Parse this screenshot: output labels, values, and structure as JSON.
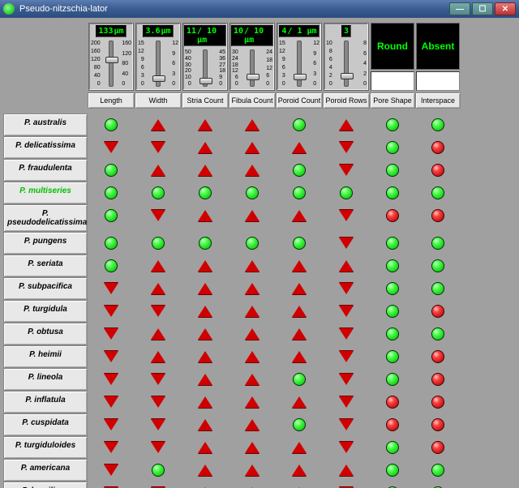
{
  "window": {
    "title": "Pseudo-nitzschia-lator"
  },
  "controls": [
    {
      "name": "Length",
      "value": "133",
      "unit": "µm",
      "min": 0,
      "max": 200,
      "ticks_l": [
        "200",
        "160",
        "120",
        "80",
        "40",
        "0"
      ],
      "ticks_r": [
        "160",
        "120",
        "80",
        "40",
        "0"
      ],
      "thumb_pct": 34
    },
    {
      "name": "Width",
      "value": "3.6",
      "unit": "µm",
      "min": 0,
      "max": 15,
      "ticks_l": [
        "15",
        "12",
        "9",
        "6",
        "3",
        "0"
      ],
      "ticks_r": [
        "12",
        "9",
        "6",
        "3",
        "0"
      ],
      "thumb_pct": 76
    },
    {
      "name": "Stria Count",
      "value": "11",
      "unit": "/ 10 µm",
      "min": 0,
      "max": 50,
      "ticks_l": [
        "50",
        "40",
        "30",
        "20",
        "10",
        "0"
      ],
      "ticks_r": [
        "45",
        "36",
        "27",
        "18",
        "9",
        "0"
      ],
      "thumb_pct": 78
    },
    {
      "name": "Fibula Count",
      "value": "10",
      "unit": "/ 10 µm",
      "min": 0,
      "max": 30,
      "ticks_l": [
        "30",
        "24",
        "18",
        "12",
        "6",
        "0"
      ],
      "ticks_r": [
        "24",
        "18",
        "12",
        "6",
        "0"
      ],
      "thumb_pct": 66
    },
    {
      "name": "Poroid Count",
      "value": "4",
      "unit": "/ 1 µm",
      "min": 0,
      "max": 15,
      "ticks_l": [
        "15",
        "12",
        "9",
        "6",
        "3",
        "0"
      ],
      "ticks_r": [
        "12",
        "9",
        "6",
        "3",
        "0"
      ],
      "thumb_pct": 73
    },
    {
      "name": "Poroid Rows",
      "value": "3",
      "unit": "",
      "min": 0,
      "max": 10,
      "ticks_l": [
        "10",
        "8",
        "6",
        "4",
        "2",
        "0"
      ],
      "ticks_r": [
        "8",
        "6",
        "4",
        "2",
        "0"
      ],
      "thumb_pct": 70
    }
  ],
  "text_controls": [
    {
      "name": "Pore Shape",
      "value": "Round"
    },
    {
      "name": "Interspace",
      "value": "Absent"
    }
  ],
  "species": [
    {
      "name": "P. australis",
      "match": false,
      "marks": [
        "green",
        "up",
        "up",
        "up",
        "green",
        "up",
        "green",
        "green"
      ]
    },
    {
      "name": "P. delicatissima",
      "match": false,
      "marks": [
        "down",
        "down",
        "up",
        "up",
        "up",
        "down",
        "green",
        "red"
      ]
    },
    {
      "name": "P. fraudulenta",
      "match": false,
      "marks": [
        "green",
        "up",
        "up",
        "up",
        "green",
        "down",
        "green",
        "red"
      ]
    },
    {
      "name": "P. multiseries",
      "match": true,
      "marks": [
        "green",
        "green",
        "green",
        "green",
        "green",
        "green",
        "green",
        "green"
      ]
    },
    {
      "name": "P. pseudodelicatissima",
      "match": false,
      "marks": [
        "green",
        "down",
        "up",
        "up",
        "up",
        "down",
        "red",
        "red"
      ]
    },
    {
      "name": "P. pungens",
      "match": false,
      "marks": [
        "green",
        "green",
        "green",
        "green",
        "green",
        "down",
        "green",
        "green"
      ]
    },
    {
      "name": "P. seriata",
      "match": false,
      "marks": [
        "green",
        "up",
        "up",
        "up",
        "up",
        "up",
        "green",
        "green"
      ]
    },
    {
      "name": "P. subpacifica",
      "match": false,
      "marks": [
        "down",
        "up",
        "up",
        "up",
        "up",
        "down",
        "green",
        "green"
      ]
    },
    {
      "name": "P. turgidula",
      "match": false,
      "marks": [
        "down",
        "down",
        "up",
        "up",
        "up",
        "down",
        "green",
        "red"
      ]
    },
    {
      "name": "P. obtusa",
      "match": false,
      "marks": [
        "down",
        "up",
        "up",
        "up",
        "up",
        "down",
        "green",
        "green"
      ]
    },
    {
      "name": "P. heimii",
      "match": false,
      "marks": [
        "down",
        "up",
        "up",
        "up",
        "up",
        "down",
        "green",
        "red"
      ]
    },
    {
      "name": "P. lineola",
      "match": false,
      "marks": [
        "down",
        "down",
        "up",
        "up",
        "green",
        "down",
        "green",
        "red"
      ]
    },
    {
      "name": "P. inflatula",
      "match": false,
      "marks": [
        "down",
        "down",
        "up",
        "up",
        "up",
        "down",
        "red",
        "red"
      ]
    },
    {
      "name": "P. cuspidata",
      "match": false,
      "marks": [
        "down",
        "down",
        "up",
        "up",
        "green",
        "down",
        "red",
        "red"
      ]
    },
    {
      "name": "P. turgiduloides",
      "match": false,
      "marks": [
        "down",
        "down",
        "up",
        "up",
        "up",
        "down",
        "green",
        "red"
      ]
    },
    {
      "name": "P. americana",
      "match": false,
      "marks": [
        "down",
        "green",
        "up",
        "up",
        "up",
        "up",
        "green",
        "green"
      ]
    },
    {
      "name": "P. brasiliana",
      "match": false,
      "marks": [
        "down",
        "down",
        "up",
        "up",
        "up",
        "down",
        "green",
        "green"
      ]
    }
  ],
  "colors": {
    "bg": "#a0a0a0",
    "panel": "#e8e8e8",
    "accent_green": "#00ff00",
    "orb_green": "#00c000",
    "orb_red": "#d00000",
    "tri_red": "#d00000"
  }
}
